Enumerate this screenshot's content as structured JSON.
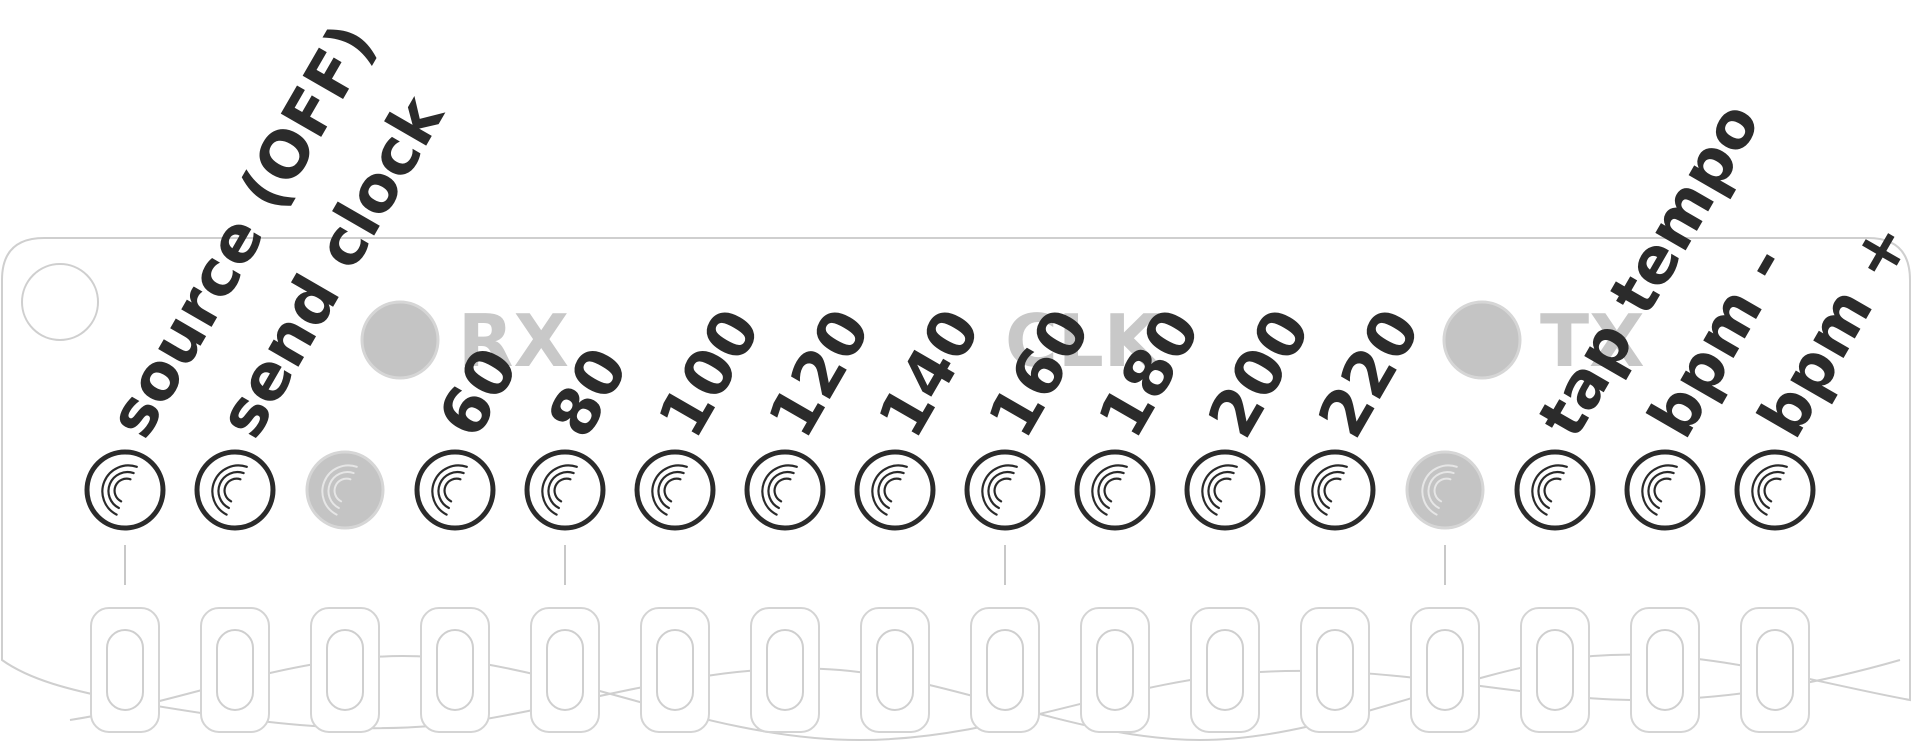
{
  "buttons": [
    {
      "label": "source (OFF)",
      "kind": "button"
    },
    {
      "label": "send clock",
      "kind": "button"
    },
    {
      "label": "",
      "kind": "led"
    },
    {
      "label": "60",
      "kind": "button"
    },
    {
      "label": "80",
      "kind": "button"
    },
    {
      "label": "100",
      "kind": "button"
    },
    {
      "label": "120",
      "kind": "button"
    },
    {
      "label": "140",
      "kind": "button"
    },
    {
      "label": "160",
      "kind": "button"
    },
    {
      "label": "180",
      "kind": "button"
    },
    {
      "label": "200",
      "kind": "button"
    },
    {
      "label": "220",
      "kind": "button"
    },
    {
      "label": "",
      "kind": "led"
    },
    {
      "label": "tap tempo",
      "kind": "button"
    },
    {
      "label": "bpm -",
      "kind": "button"
    },
    {
      "label": "bpm +",
      "kind": "button"
    }
  ],
  "panel_markings": [
    "RX",
    "CLK",
    "TX"
  ],
  "colors": {
    "ink": "#2b2b2b",
    "panel_outline": "#cfcfcf",
    "led_fill": "#c4c4c4"
  }
}
